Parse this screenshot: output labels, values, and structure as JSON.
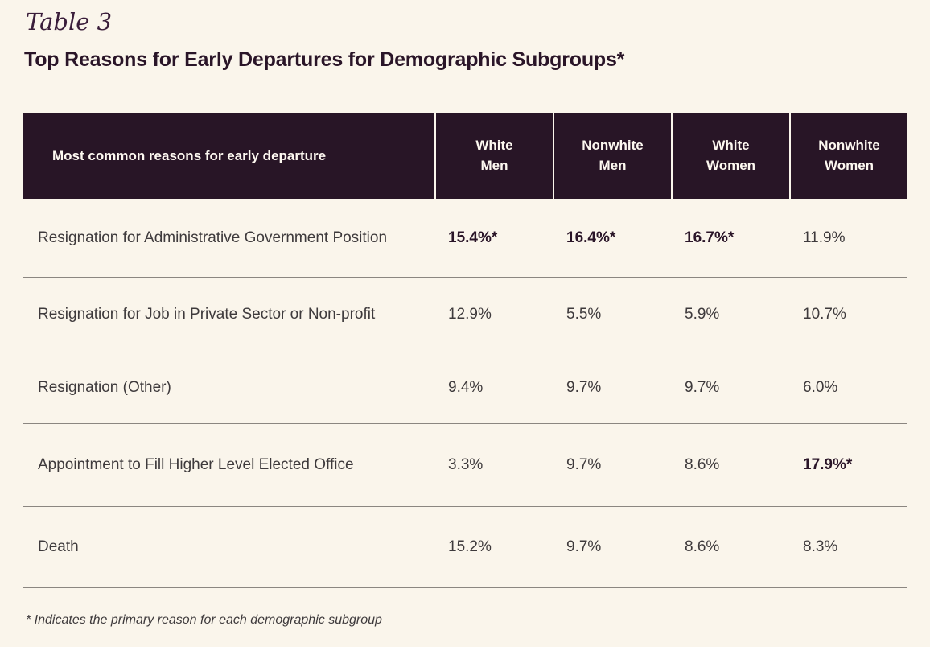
{
  "page": {
    "table_label": "Table 3",
    "title": "Top Reasons for Early Departures for Demographic Subgroups*",
    "footnote": "* Indicates the primary reason for each demographic subgroup"
  },
  "colors": {
    "background": "#FAF5EB",
    "header_background": "#281526",
    "header_text": "#FDF8F0",
    "accent_text": "#2A1528",
    "body_text": "#3E3A3C",
    "divider": "#8B8680"
  },
  "table": {
    "reason_header": "Most common reasons for early departure",
    "group_columns": [
      "White Men",
      "Nonwhite Men",
      "White Women",
      "Nonwhite Women"
    ],
    "rows": [
      {
        "label": "Resignation for Administrative Government Position",
        "values": [
          {
            "text": "15.4%*",
            "primary": true
          },
          {
            "text": "16.4%*",
            "primary": true
          },
          {
            "text": "16.7%*",
            "primary": true
          },
          {
            "text": "11.9%",
            "primary": false
          }
        ]
      },
      {
        "label": "Resignation for Job in Private Sector or Non-profit",
        "values": [
          {
            "text": "12.9%",
            "primary": false
          },
          {
            "text": "5.5%",
            "primary": false
          },
          {
            "text": "5.9%",
            "primary": false
          },
          {
            "text": "10.7%",
            "primary": false
          }
        ]
      },
      {
        "label": "Resignation (Other)",
        "values": [
          {
            "text": "9.4%",
            "primary": false
          },
          {
            "text": "9.7%",
            "primary": false
          },
          {
            "text": "9.7%",
            "primary": false
          },
          {
            "text": "6.0%",
            "primary": false
          }
        ]
      },
      {
        "label": "Appointment to Fill Higher Level Elected Office",
        "values": [
          {
            "text": "3.3%",
            "primary": false
          },
          {
            "text": "9.7%",
            "primary": false
          },
          {
            "text": "8.6%",
            "primary": false
          },
          {
            "text": "17.9%*",
            "primary": true
          }
        ]
      },
      {
        "label": "Death",
        "values": [
          {
            "text": "15.2%",
            "primary": false
          },
          {
            "text": "9.7%",
            "primary": false
          },
          {
            "text": "8.6%",
            "primary": false
          },
          {
            "text": "8.3%",
            "primary": false
          }
        ]
      }
    ]
  }
}
